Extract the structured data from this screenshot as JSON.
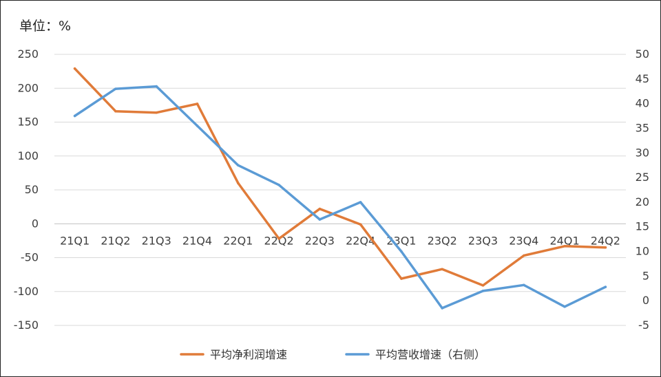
{
  "unit_label": "单位：%",
  "chart_data": {
    "type": "line",
    "categories": [
      "21Q1",
      "21Q2",
      "21Q3",
      "21Q4",
      "22Q1",
      "22Q2",
      "22Q3",
      "22Q4",
      "23Q1",
      "23Q2",
      "23Q3",
      "23Q4",
      "24Q1",
      "24Q2"
    ],
    "y_left": {
      "ylim": [
        -150,
        250
      ],
      "ticks": [
        250,
        200,
        150,
        100,
        50,
        0,
        -50,
        -100,
        -150
      ]
    },
    "y_right": {
      "ylim": [
        -5,
        50
      ],
      "ticks": [
        50,
        45,
        40,
        35,
        30,
        25,
        20,
        15,
        10,
        5,
        0,
        -5
      ]
    },
    "grid": true,
    "legend_position": "bottom",
    "series": [
      {
        "name": "平均净利润增速",
        "axis": "left",
        "color": "#E07B39",
        "values": [
          229,
          166,
          164,
          177,
          60,
          -22,
          22,
          -1,
          -81,
          -67,
          -91,
          -47,
          -33,
          -35
        ]
      },
      {
        "name": "平均营收增速（右侧）",
        "axis": "right",
        "color": "#5B9BD5",
        "values": [
          37.5,
          43,
          43.5,
          35.5,
          27.5,
          23.5,
          16.5,
          20,
          10,
          -1.5,
          2,
          3.2,
          -1.2,
          2.8
        ]
      }
    ]
  }
}
